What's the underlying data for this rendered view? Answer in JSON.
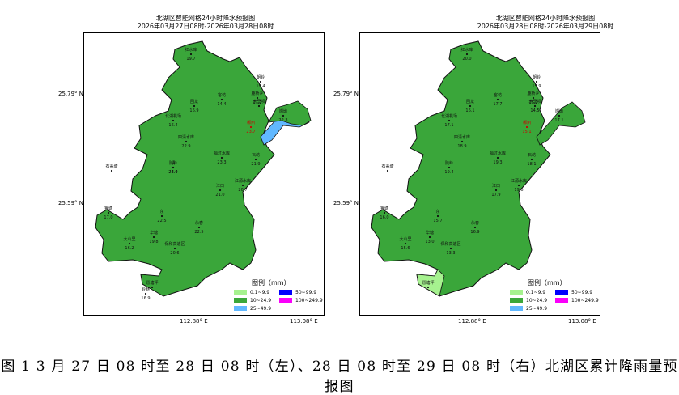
{
  "left_map": {
    "title_line1": "北湖区智能网格24小时降水预报图",
    "title_line2": "2026年03月27日08时-2026年03月28日08时",
    "stations": [
      {
        "name": "红水库",
        "value": "19.7"
      },
      {
        "name": "朝岭",
        "value": "19.4"
      },
      {
        "name": "客坊",
        "value": "14.4"
      },
      {
        "name": "鹿桥乡",
        "value": "17.1"
      },
      {
        "name": "木里坝",
        "value": ""
      },
      {
        "name": "岗坳",
        "value": "22.3"
      },
      {
        "name": "回龙",
        "value": "16.9"
      },
      {
        "name": "北湖机场",
        "value": "16.4"
      },
      {
        "name": "郴州",
        "value": "23.7"
      },
      {
        "name": "四清水库",
        "value": "22.9"
      },
      {
        "name": "石盖塘",
        "value": ""
      },
      {
        "name": "陡岭",
        "value": "23.4"
      },
      {
        "name": "福过水库",
        "value": "23.3"
      },
      {
        "name": "石坊",
        "value": "21.9"
      },
      {
        "name": "清",
        "value": "24.0"
      },
      {
        "name": "江源水库",
        "value": "20.7"
      },
      {
        "name": "江口",
        "value": "21.0"
      },
      {
        "name": "鲁塘",
        "value": "17.0"
      },
      {
        "name": "东",
        "value": "22.5"
      },
      {
        "name": "永春",
        "value": "22.5"
      },
      {
        "name": "大山里",
        "value": "16.2"
      },
      {
        "name": "华塘",
        "value": "19.8"
      },
      {
        "name": "保和高速区",
        "value": "20.6"
      },
      {
        "name": "岭巷",
        "value": "16.9"
      },
      {
        "name": "愿塘坪",
        "value": ""
      }
    ]
  },
  "right_map": {
    "title_line1": "北湖区智能网格24小时降水预报图",
    "title_line2": "2026年03月28日08时-2026年03月29日08时",
    "stations": [
      {
        "name": "红水库",
        "value": "20.0"
      },
      {
        "name": "朝岭",
        "value": "15.9"
      },
      {
        "name": "客坊",
        "value": "17.7"
      },
      {
        "name": "鹿桥乡",
        "value": "15.9"
      },
      {
        "name": "木里坝",
        "value": "14.5"
      },
      {
        "name": "岗坳",
        "value": "17.1"
      },
      {
        "name": "回龙",
        "value": "16.1"
      },
      {
        "name": "北湖机场",
        "value": "17.1"
      },
      {
        "name": "郴州",
        "value": "15.1"
      },
      {
        "name": "四清水库",
        "value": "18.9"
      },
      {
        "name": "石盖塘",
        "value": ""
      },
      {
        "name": "陡岭",
        "value": "19.4"
      },
      {
        "name": "福过水库",
        "value": "19.3"
      },
      {
        "name": "石坊",
        "value": "18.1"
      },
      {
        "name": "江源水库",
        "value": "19.6"
      },
      {
        "name": "江口",
        "value": "17.9"
      },
      {
        "name": "鲁塘",
        "value": "16.0"
      },
      {
        "name": "东",
        "value": "15.7"
      },
      {
        "name": "永春",
        "value": "16.9"
      },
      {
        "name": "大山里",
        "value": "15.6"
      },
      {
        "name": "华塘",
        "value": "13.0"
      },
      {
        "name": "保和高速区",
        "value": "13.3"
      },
      {
        "name": "愿塘坪",
        "value": ""
      }
    ]
  },
  "axes": {
    "lat_upper": "25.79° N",
    "lat_lower": "25.59° N",
    "lon_left": "112.88° E",
    "lon_right": "113.08° E"
  },
  "legend": {
    "title": "图例（mm）",
    "items": [
      {
        "label": "0.1~9.9",
        "color": "#a6f28f"
      },
      {
        "label": "50~99.9",
        "color": "#0000fe"
      },
      {
        "label": "10~24.9",
        "color": "#3ba73a"
      },
      {
        "label": "100~249.9",
        "color": "#fa00fa"
      },
      {
        "label": "25~49.9",
        "color": "#61b8ff"
      }
    ]
  },
  "colors": {
    "region_fill": "#3aa63a",
    "region_outline": "#111111",
    "highlight_light": "#a6f28f",
    "highlight_blue": "#61b8ff",
    "city_label": "#cc0000"
  },
  "caption": "图 1 3 月 27 日 08 时至 28 日 08 时（左）、28 日 08 时至 29 日 08 时（右）北湖区累计降雨量预报图"
}
